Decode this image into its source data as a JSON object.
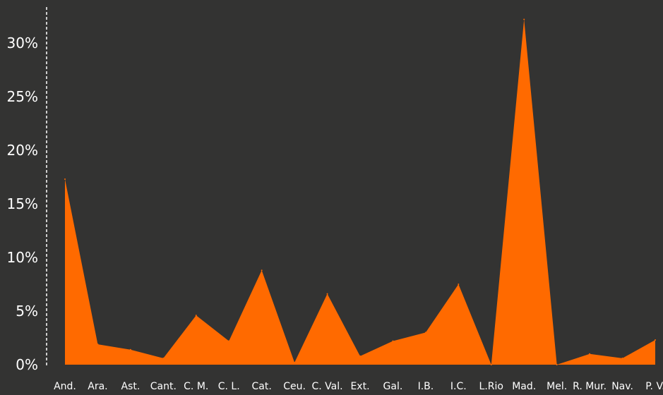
{
  "chart_data": {
    "type": "area",
    "title": "",
    "xlabel": "",
    "ylabel": "",
    "categories": [
      "And.",
      "Ara.",
      "Ast.",
      "Cant.",
      "C. M.",
      "C. L.",
      "Cat.",
      "Ceu.",
      "C. Val.",
      "Ext.",
      "Gal.",
      "I.B.",
      "I.C.",
      "L.Rio",
      "Mad.",
      "Mel.",
      "R. Mur.",
      "Nav.",
      "P. V."
    ],
    "series": [
      {
        "values": [
          17.3,
          1.9,
          1.4,
          0.6,
          4.6,
          2.2,
          8.8,
          0.2,
          6.6,
          0.8,
          2.2,
          3.0,
          7.5,
          0.0,
          32.2,
          0.0,
          1.0,
          0.6,
          2.3
        ]
      }
    ],
    "yticks": [
      "0%",
      "5%",
      "10%",
      "15%",
      "20%",
      "25%",
      "30%"
    ],
    "ylim": [
      0,
      32.5
    ],
    "grid": false,
    "legend": "none",
    "colors": {
      "background": "#333332",
      "area": "#ff6a00",
      "text": "#ffffff",
      "axis": "#ffffff"
    }
  }
}
